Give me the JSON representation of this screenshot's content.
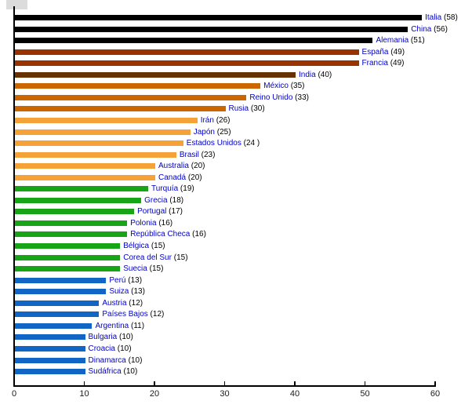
{
  "chart_data": {
    "type": "bar",
    "orientation": "horizontal",
    "title": "",
    "xlabel": "",
    "ylabel": "",
    "xlim": [
      0,
      60
    ],
    "x_ticks": [
      0,
      10,
      20,
      30,
      40,
      50,
      60
    ],
    "grid": false,
    "legend": "none",
    "background": "#FFFFFF",
    "axis_color": "#000000",
    "tick_label_color": "#1A1A1A",
    "label_color": "#0000CC",
    "value_color": "#000000",
    "bars": [
      {
        "country": "Italia",
        "value": 58,
        "value_text": "(58)",
        "color": "#000000"
      },
      {
        "country": "China",
        "value": 56,
        "value_text": "(56)",
        "color": "#000000"
      },
      {
        "country": "Alemania",
        "value": 51,
        "value_text": "(51)",
        "color": "#000000"
      },
      {
        "country": "España",
        "value": 49,
        "value_text": "(49)",
        "color": "#993300"
      },
      {
        "country": "Francia",
        "value": 49,
        "value_text": "(49)",
        "color": "#993300"
      },
      {
        "country": "India",
        "value": 40,
        "value_text": "(40)",
        "color": "#663300"
      },
      {
        "country": "México",
        "value": 35,
        "value_text": "(35)",
        "color": "#CC6600"
      },
      {
        "country": "Reino Unido",
        "value": 33,
        "value_text": "(33)",
        "color": "#CC6600"
      },
      {
        "country": "Rusia",
        "value": 30,
        "value_text": "(30)",
        "color": "#CC6600"
      },
      {
        "country": "Irán",
        "value": 26,
        "value_text": "(26)",
        "color": "#F5A339"
      },
      {
        "country": "Japón",
        "value": 25,
        "value_text": "(25)",
        "color": "#F5A339"
      },
      {
        "country": "Estados Unidos",
        "value": 24,
        "value_text": "(24 )",
        "color": "#F5A339"
      },
      {
        "country": "Brasil",
        "value": 23,
        "value_text": "(23)",
        "color": "#F5A339"
      },
      {
        "country": "Australia",
        "value": 20,
        "value_text": "(20)",
        "color": "#F5A339"
      },
      {
        "country": "Canadá",
        "value": 20,
        "value_text": "(20)",
        "color": "#F5A339"
      },
      {
        "country": "Turquía",
        "value": 19,
        "value_text": "(19)",
        "color": "#17A517"
      },
      {
        "country": "Grecia",
        "value": 18,
        "value_text": "(18)",
        "color": "#17A517"
      },
      {
        "country": "Portugal",
        "value": 17,
        "value_text": "(17)",
        "color": "#17A517"
      },
      {
        "country": "Polonia",
        "value": 16,
        "value_text": "(16)",
        "color": "#17A517"
      },
      {
        "country": "República Checa",
        "value": 16,
        "value_text": "(16)",
        "color": "#17A517"
      },
      {
        "country": "Bélgica",
        "value": 15,
        "value_text": "(15)",
        "color": "#17A517"
      },
      {
        "country": "Corea del Sur",
        "value": 15,
        "value_text": "(15)",
        "color": "#17A517"
      },
      {
        "country": "Suecia",
        "value": 15,
        "value_text": "(15)",
        "color": "#17A517"
      },
      {
        "country": "Perú",
        "value": 13,
        "value_text": "(13)",
        "color": "#1065C5"
      },
      {
        "country": "Suiza",
        "value": 13,
        "value_text": "(13)",
        "color": "#1065C5"
      },
      {
        "country": "Austria",
        "value": 12,
        "value_text": "(12)",
        "color": "#1065C5"
      },
      {
        "country": "Países Bajos",
        "value": 12,
        "value_text": "(12)",
        "color": "#1065C5"
      },
      {
        "country": "Argentina",
        "value": 11,
        "value_text": "(11)",
        "color": "#1065C5"
      },
      {
        "country": "Bulgaria",
        "value": 10,
        "value_text": "(10)",
        "color": "#1065C5"
      },
      {
        "country": "Croacia",
        "value": 10,
        "value_text": "(10)",
        "color": "#1065C5"
      },
      {
        "country": "Dinamarca",
        "value": 10,
        "value_text": "(10)",
        "color": "#1065C5"
      },
      {
        "country": "Sudáfrica",
        "value": 10,
        "value_text": "(10)",
        "color": "#1065C5"
      }
    ]
  }
}
